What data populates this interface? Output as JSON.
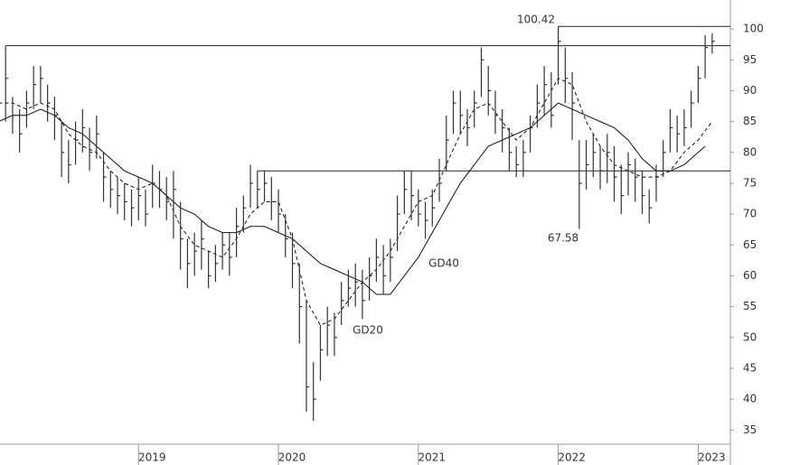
{
  "chart_data": {
    "type": "ohlc",
    "x": [
      2018.05,
      2018.1,
      2018.15,
      2018.2,
      2018.25,
      2018.3,
      2018.35,
      2018.4,
      2018.45,
      2018.5,
      2018.55,
      2018.6,
      2018.65,
      2018.7,
      2018.75,
      2018.8,
      2018.85,
      2018.9,
      2018.95,
      2019.0,
      2019.05,
      2019.1,
      2019.15,
      2019.2,
      2019.25,
      2019.3,
      2019.35,
      2019.4,
      2019.45,
      2019.5,
      2019.55,
      2019.6,
      2019.65,
      2019.7,
      2019.75,
      2019.8,
      2019.85,
      2019.9,
      2019.95,
      2020.0,
      2020.05,
      2020.1,
      2020.15,
      2020.2,
      2020.25,
      2020.3,
      2020.35,
      2020.4,
      2020.45,
      2020.5,
      2020.55,
      2020.6,
      2020.65,
      2020.7,
      2020.75,
      2020.8,
      2020.85,
      2020.9,
      2020.95,
      2021.0,
      2021.05,
      2021.1,
      2021.15,
      2021.2,
      2021.25,
      2021.3,
      2021.35,
      2021.4,
      2021.45,
      2021.5,
      2021.55,
      2021.6,
      2021.65,
      2021.7,
      2021.75,
      2021.8,
      2021.85,
      2021.9,
      2021.95,
      2022.0,
      2022.05,
      2022.1,
      2022.15,
      2022.2,
      2022.25,
      2022.3,
      2022.35,
      2022.4,
      2022.45,
      2022.5,
      2022.55,
      2022.6,
      2022.65,
      2022.7,
      2022.75,
      2022.8,
      2022.85,
      2022.9,
      2022.95,
      2023.0,
      2023.05,
      2023.1
    ],
    "high": [
      97.3,
      89,
      87,
      90,
      94,
      94,
      91,
      89,
      85,
      82,
      85,
      87,
      84,
      86,
      80,
      77,
      76,
      75,
      74,
      76,
      74,
      78,
      77,
      76,
      77,
      72,
      66,
      67,
      69,
      64,
      65,
      67,
      67,
      71,
      73,
      78,
      77,
      77,
      76,
      74,
      70,
      67,
      62,
      56,
      46,
      52,
      55,
      54,
      59,
      61,
      62,
      61,
      63,
      66,
      65,
      66,
      73,
      77,
      77,
      74,
      72,
      74,
      79,
      86,
      90,
      90,
      87,
      90,
      97,
      94,
      90,
      87,
      84,
      81,
      82,
      86,
      91,
      94,
      93,
      100.42,
      97,
      93,
      82,
      82,
      83,
      81,
      83,
      81,
      78,
      80,
      79,
      77,
      74,
      78,
      82,
      87,
      86,
      87,
      90,
      94,
      99,
      99.3
    ],
    "low": [
      85,
      83,
      80,
      84,
      87,
      88,
      85,
      82,
      76,
      75,
      78,
      80,
      77,
      79,
      72,
      71,
      70,
      69,
      68,
      69,
      68,
      71,
      71,
      69,
      66,
      61,
      58,
      60,
      61,
      58,
      59,
      61,
      60,
      63,
      67,
      71,
      71,
      72,
      69,
      67,
      63,
      58,
      49,
      38,
      36.5,
      43,
      47,
      47,
      52,
      55,
      55,
      53,
      56,
      59,
      57,
      59,
      64,
      70,
      69,
      68,
      66,
      68,
      72,
      77,
      83,
      83,
      81,
      84,
      89,
      86,
      83,
      80,
      77,
      76,
      76,
      80,
      84,
      86,
      84,
      91,
      88,
      82,
      67.58,
      74,
      76,
      74,
      75,
      72,
      70,
      73,
      72,
      70,
      68.5,
      72,
      76,
      80,
      80,
      81,
      84,
      88,
      92,
      96
    ],
    "close": [
      92,
      86,
      83,
      88,
      91,
      92,
      88,
      86,
      80,
      78,
      82,
      84,
      80,
      83,
      76,
      74,
      73,
      72,
      71,
      73,
      70,
      75,
      74,
      72,
      74,
      66,
      62,
      64,
      66,
      60,
      62,
      65,
      63,
      68,
      71,
      75,
      74,
      75,
      72,
      70,
      66,
      62,
      55,
      42,
      40,
      48,
      52,
      50,
      56,
      58,
      59,
      56,
      60,
      63,
      60,
      63,
      70,
      74,
      73,
      70,
      69,
      71,
      75,
      82,
      88,
      86,
      84,
      88,
      95,
      90,
      86,
      84,
      80,
      78,
      80,
      84,
      88,
      91,
      86,
      98,
      92,
      88,
      75,
      78,
      80,
      77,
      80,
      76,
      73,
      78,
      76,
      73,
      71,
      76,
      80,
      84,
      83,
      84,
      88,
      92,
      97,
      98
    ],
    "color": "#333333",
    "series": [
      {
        "name": "GD40",
        "color": "#111111",
        "dash": false,
        "x": [
          2018.0,
          2018.1,
          2018.2,
          2018.3,
          2018.4,
          2018.5,
          2018.6,
          2018.7,
          2018.8,
          2018.9,
          2019.0,
          2019.1,
          2019.2,
          2019.3,
          2019.4,
          2019.5,
          2019.6,
          2019.7,
          2019.8,
          2019.9,
          2020.0,
          2020.1,
          2020.2,
          2020.3,
          2020.4,
          2020.5,
          2020.6,
          2020.7,
          2020.8,
          2020.9,
          2021.0,
          2021.1,
          2021.2,
          2021.3,
          2021.4,
          2021.5,
          2021.6,
          2021.7,
          2021.8,
          2021.9,
          2022.0,
          2022.1,
          2022.2,
          2022.3,
          2022.4,
          2022.5,
          2022.6,
          2022.7,
          2022.8,
          2022.9,
          2023.0,
          2023.05
        ],
        "values": [
          85,
          86,
          86,
          87,
          86,
          84,
          83,
          81,
          79,
          77,
          76,
          75,
          73,
          71,
          70,
          68,
          67,
          67,
          68,
          68,
          67,
          66,
          64,
          62,
          61,
          60,
          59,
          57,
          57,
          60,
          63,
          67,
          71,
          75,
          78,
          81,
          82,
          83,
          84,
          86,
          88,
          87,
          86,
          85,
          84,
          82,
          79,
          77,
          77,
          78,
          80,
          81
        ]
      },
      {
        "name": "GD20",
        "color": "#111111",
        "dash": true,
        "x": [
          2018.0,
          2018.1,
          2018.2,
          2018.3,
          2018.4,
          2018.5,
          2018.6,
          2018.7,
          2018.8,
          2018.9,
          2019.0,
          2019.1,
          2019.2,
          2019.3,
          2019.4,
          2019.5,
          2019.6,
          2019.7,
          2019.8,
          2019.9,
          2020.0,
          2020.1,
          2020.2,
          2020.3,
          2020.4,
          2020.5,
          2020.6,
          2020.7,
          2020.8,
          2020.9,
          2021.0,
          2021.1,
          2021.2,
          2021.3,
          2021.4,
          2021.5,
          2021.6,
          2021.7,
          2021.8,
          2021.9,
          2022.0,
          2022.1,
          2022.2,
          2022.3,
          2022.4,
          2022.5,
          2022.6,
          2022.7,
          2022.8,
          2022.9,
          2023.0,
          2023.1
        ],
        "values": [
          88,
          88,
          87,
          88,
          87,
          83,
          81,
          80,
          77,
          75,
          74,
          75,
          73,
          68,
          65,
          64,
          63,
          66,
          70,
          72,
          72,
          66,
          56,
          52,
          53,
          56,
          59,
          61,
          64,
          68,
          72,
          73,
          78,
          83,
          87,
          88,
          85,
          82,
          84,
          88,
          92,
          91,
          85,
          81,
          78,
          77,
          76,
          76,
          77,
          80,
          82,
          85
        ]
      }
    ],
    "hlines": [
      {
        "value": 97.3,
        "from": 2018.05
      },
      {
        "value": 100.42,
        "from": 2022.0
      },
      {
        "value": 77,
        "from": 2019.85
      }
    ],
    "xlim": [
      2018.01,
      2023.23
    ],
    "ylim": [
      32.7,
      104.7
    ],
    "xticks": [
      2019,
      2020,
      2021,
      2022,
      2023
    ],
    "yticks": [
      35,
      40,
      45,
      50,
      55,
      60,
      65,
      70,
      75,
      80,
      85,
      90,
      95,
      100
    ]
  }
}
